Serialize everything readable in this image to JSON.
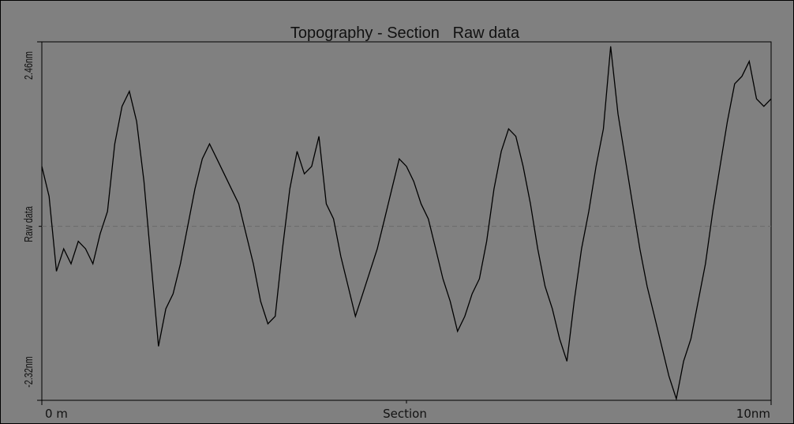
{
  "chart_data": {
    "type": "line",
    "title": "Topography - Section   Raw data",
    "xlabel": "Section",
    "ylabel": "Raw data",
    "x_unit": "nm",
    "x_tick_labels": [
      "0 m",
      "10nm"
    ],
    "y_tick_labels": [
      "2.46nm",
      "-2.32nm"
    ],
    "xlim": [
      0,
      10
    ],
    "ylim": [
      -2.32,
      2.46
    ],
    "grid": false,
    "reference_line_y": 0,
    "line_color": "#000000",
    "reference_line_color": "#6a6a6a",
    "background_color": "#808080",
    "series": [
      {
        "x": [
          0,
          0.1,
          0.2,
          0.3,
          0.4,
          0.5,
          0.6,
          0.7,
          0.8,
          0.9,
          1,
          1.1,
          1.2,
          1.3,
          1.4,
          1.5,
          1.6,
          1.7,
          1.8,
          1.9,
          2,
          2.1,
          2.2,
          2.3,
          2.4,
          2.5,
          2.6,
          2.7,
          2.8,
          2.9,
          3,
          3.1,
          3.2,
          3.3,
          3.4,
          3.5,
          3.6,
          3.7,
          3.8,
          3.9,
          4,
          4.1,
          4.2,
          4.3,
          4.4,
          4.5,
          4.6,
          4.7,
          4.8,
          4.9,
          5,
          5.1,
          5.2,
          5.3,
          5.4,
          5.5,
          5.6,
          5.7,
          5.8,
          5.9,
          6,
          6.1,
          6.2,
          6.3,
          6.4,
          6.5,
          6.6,
          6.7,
          6.8,
          6.9,
          7,
          7.1,
          7.2,
          7.3,
          7.4,
          7.5,
          7.6,
          7.7,
          7.8,
          7.9,
          8,
          8.1,
          8.2,
          8.3,
          8.4,
          8.5,
          8.6,
          8.7,
          8.8,
          8.9,
          9,
          9.1,
          9.2,
          9.3,
          9.4,
          9.5,
          9.6,
          9.7,
          9.8,
          9.9,
          10
        ],
        "y": [
          0.8,
          0.4,
          -0.6,
          -0.3,
          -0.5,
          -0.2,
          -0.3,
          -0.5,
          -0.1,
          0.2,
          1.1,
          1.6,
          1.8,
          1.4,
          0.6,
          -0.5,
          -1.6,
          -1.1,
          -0.9,
          -0.5,
          0,
          0.5,
          0.9,
          1.1,
          0.9,
          0.7,
          0.5,
          0.3,
          -0.1,
          -0.5,
          -1.0,
          -1.3,
          -1.2,
          -0.3,
          0.5,
          1.0,
          0.7,
          0.8,
          1.2,
          0.3,
          0.1,
          -0.4,
          -0.8,
          -1.2,
          -0.9,
          -0.6,
          -0.3,
          0.1,
          0.5,
          0.9,
          0.8,
          0.6,
          0.3,
          0.1,
          -0.3,
          -0.7,
          -1.0,
          -1.4,
          -1.2,
          -0.9,
          -0.7,
          -0.2,
          0.5,
          1.0,
          1.3,
          1.2,
          0.8,
          0.3,
          -0.3,
          -0.8,
          -1.1,
          -1.5,
          -1.8,
          -1.0,
          -0.3,
          0.2,
          0.8,
          1.3,
          2.4,
          1.5,
          0.9,
          0.3,
          -0.3,
          -0.8,
          -1.2,
          -1.6,
          -2.0,
          -2.3,
          -1.8,
          -1.5,
          -1.0,
          -0.5,
          0.2,
          0.8,
          1.4,
          1.9,
          2.0,
          2.2,
          1.7,
          1.6,
          1.7
        ]
      }
    ]
  }
}
